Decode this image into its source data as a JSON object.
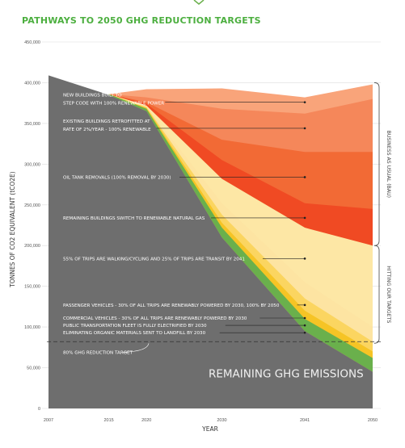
{
  "chart_data": {
    "type": "area",
    "title": "PATHWAYS TO 2050 GHG REDUCTION TARGETS",
    "xlabel": "YEAR",
    "ylabel": "TONNES OF CO2 EQUIVALENT (tCO2E)",
    "x": [
      2007,
      2015,
      2020,
      2030,
      2041,
      2050
    ],
    "x_ticks": [
      "2007",
      "2015",
      "2020",
      "2030",
      "2041",
      "2050"
    ],
    "ylim": [
      0,
      450000
    ],
    "y_ticks": [
      "0",
      "50,000",
      "100,000",
      "150,000",
      "200,000",
      "250,000",
      "300,000",
      "350,000",
      "400,000",
      "450,000"
    ],
    "grid": true,
    "remaining_label": "REMAINING GHG EMISSIONS",
    "remaining_emissions": [
      409000,
      385000,
      365000,
      210000,
      95000,
      45000
    ],
    "reduction_target": {
      "value": 82000,
      "label": "80% GHG REDUCTION TARGET"
    },
    "series": [
      {
        "name": "ELIMINATING ORGANIC MATERIALS SENT TO LANDFILL BY 2030",
        "color": "#6ab04c",
        "top": [
          null,
          386000,
          368000,
          222000,
          110000,
          62000
        ]
      },
      {
        "name": "PUBLIC TRANSPORTATION FLEET IS FULLY ELECTRIFIED BY 2030",
        "color": "#f6c425",
        "top": [
          null,
          386000,
          369000,
          228000,
          120000,
          70000
        ]
      },
      {
        "name": "COMMERCIAL VEHICLES - 30% OF ALL TRIPS ARE RENEWABLY POWERED BY 2030",
        "color": "#fbd560",
        "top": [
          null,
          386000,
          370000,
          238000,
          135000,
          82000
        ]
      },
      {
        "name": "PASSENGER VEHICLES - 30% OF ALL TRIPS ARE RENEWABLY POWERED BY 2030, 100% BY 2050",
        "color": "#fde4a2",
        "top": [
          null,
          386000,
          371000,
          252000,
          155000,
          100000
        ]
      },
      {
        "name": "55% OF TRIPS ARE WALKING/CYCLING AND 25% OF TRIPS ARE TRANSIT BY 2041",
        "color": "#fde7a5",
        "top": [
          null,
          386000,
          372000,
          282000,
          222000,
          200000
        ]
      },
      {
        "name": "REMAINING BUILDINGS SWITCH TO RENEWABLE NATURAL GAS",
        "color": "#f04a23",
        "top": [
          null,
          386000,
          374000,
          305000,
          252000,
          245000
        ]
      },
      {
        "name": "OIL TANK REMOVALS (100% REMOVAL BY 2030)",
        "color": "#f26a35",
        "top": [
          null,
          386000,
          376000,
          330000,
          315000,
          315000
        ]
      },
      {
        "name": "EXISTING BUILDINGS RETROFITTED AT RATE OF 2%/YEAR - 100% RENEWABLE",
        "color": "#f5875a",
        "top": [
          null,
          386000,
          382000,
          368000,
          362000,
          380000
        ]
      },
      {
        "name": "NEW BUILDINGS BUILT TO STEP CODE WITH 100% RENEWABLE POWER",
        "color": "#f9a47a",
        "top": [
          null,
          386000,
          392000,
          393000,
          382000,
          398000
        ]
      }
    ],
    "annotations": [
      {
        "lines": [
          "NEW BUILDINGS BUILT TO",
          "STEP CODE WITH 100% RENEWABLE POWER"
        ],
        "x": 2041,
        "y": 377000
      },
      {
        "lines": [
          "EXISTING BUILDINGS RETROFITTED AT",
          "RATE OF 2%/YEAR - 100% RENEWABLE"
        ],
        "x": 2041,
        "y": 345000
      },
      {
        "lines": [
          "OIL TANK REMOVALS (100% REMOVAL BY 2030)"
        ],
        "x": 2041,
        "y": 285000
      },
      {
        "lines": [
          "REMAINING BUILDINGS SWITCH TO RENEWABLE NATURAL GAS"
        ],
        "x": 2041,
        "y": 235000
      },
      {
        "lines": [
          "55% OF TRIPS ARE WALKING/CYCLING AND 25% OF TRIPS ARE TRANSIT BY 2041"
        ],
        "x": 2041,
        "y": 185000
      },
      {
        "lines": [
          "PASSENGER VEHICLES - 30% OF ALL TRIPS ARE RENEWABLY POWERED BY 2030, 100% BY 2050"
        ],
        "x": 2041,
        "y": 128000
      },
      {
        "lines": [
          "COMMERCIAL VEHICLES - 30% OF ALL TRIPS ARE RENEWABLY POWERED BY 2030"
        ],
        "x": 2041,
        "y": 112000
      },
      {
        "lines": [
          "PUBLIC TRANSPORTATION FLEET IS FULLY ELECTRIFIED BY 2030"
        ],
        "x": 2041,
        "y": 103000
      },
      {
        "lines": [
          "ELIMINATING ORGANIC MATERIALS SENT TO LANDFILL BY 2030"
        ],
        "x": 2041,
        "y": 94000
      }
    ],
    "bracket_labels": [
      {
        "text": "BUSINESS AS USUAL (BAU)",
        "from": 400000,
        "to": 200000
      },
      {
        "text": "HITTING OUR TARGETS",
        "from": 200000,
        "to": 80000
      }
    ],
    "colors": {
      "title": "#4caf3f",
      "remaining": "#6e6e6e",
      "grid": "#dddddd"
    }
  }
}
